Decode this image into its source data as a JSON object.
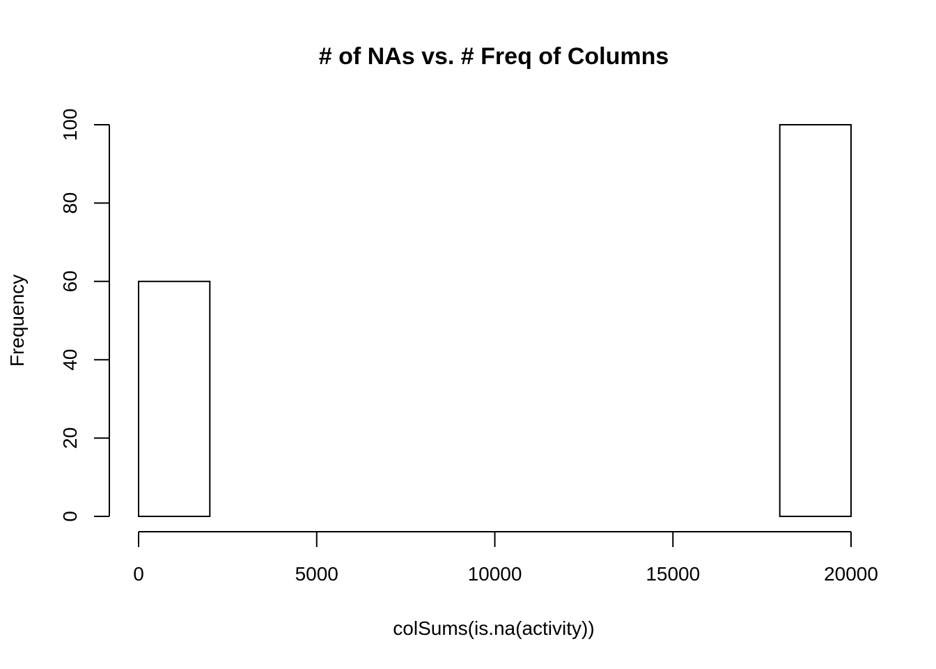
{
  "chart_data": {
    "type": "bar",
    "title": "# of NAs vs. # Freq of Columns",
    "xlabel": "colSums(is.na(activity))",
    "ylabel": "Frequency",
    "xlim": [
      0,
      20000
    ],
    "ylim": [
      0,
      100
    ],
    "x_ticks": [
      "0",
      "5000",
      "10000",
      "15000",
      "20000"
    ],
    "y_ticks": [
      "0",
      "20",
      "40",
      "60",
      "80",
      "100"
    ],
    "bins": [
      {
        "x0": 0,
        "x1": 2000,
        "count": 60
      },
      {
        "x0": 2000,
        "x1": 4000,
        "count": 0
      },
      {
        "x0": 4000,
        "x1": 6000,
        "count": 0
      },
      {
        "x0": 6000,
        "x1": 8000,
        "count": 0
      },
      {
        "x0": 8000,
        "x1": 10000,
        "count": 0
      },
      {
        "x0": 10000,
        "x1": 12000,
        "count": 0
      },
      {
        "x0": 12000,
        "x1": 14000,
        "count": 0
      },
      {
        "x0": 14000,
        "x1": 16000,
        "count": 0
      },
      {
        "x0": 16000,
        "x1": 18000,
        "count": 0
      },
      {
        "x0": 18000,
        "x1": 20000,
        "count": 100
      }
    ]
  }
}
